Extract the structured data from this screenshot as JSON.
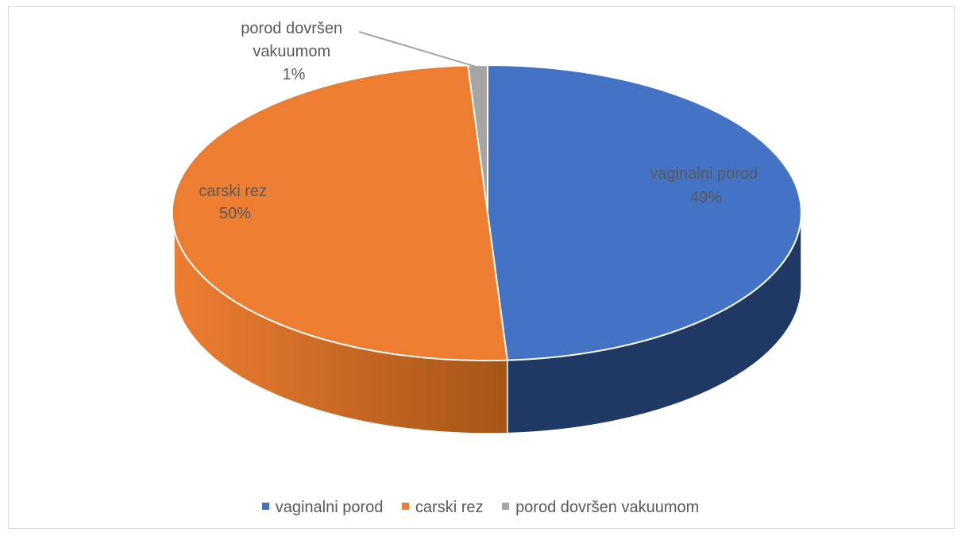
{
  "chart_data": {
    "type": "pie",
    "style": "3d",
    "title": "",
    "slices": [
      {
        "label": "vaginalni porod",
        "value": 49,
        "display": "49%",
        "color": "#4472c4",
        "side_color": "#1f3864"
      },
      {
        "label": "carski rez",
        "value": 50,
        "display": "50%",
        "color": "#ed7d31",
        "side_color": "#a65518"
      },
      {
        "label": "porod dovršen vakuumom",
        "value": 1,
        "display": "1%",
        "color": "#a5a5a5",
        "side_color": "#7b7b7b"
      }
    ],
    "data_labels": [
      {
        "lines": [
          "vaginalni porod",
          "49%"
        ]
      },
      {
        "lines": [
          "carski rez",
          "50%"
        ]
      },
      {
        "lines": [
          "porod dovršen",
          "vakuumom",
          "1%"
        ]
      }
    ],
    "legend": {
      "position": "bottom",
      "entries": [
        "vaginalni porod",
        "carski rez",
        "porod dovršen vakuumom"
      ]
    }
  }
}
